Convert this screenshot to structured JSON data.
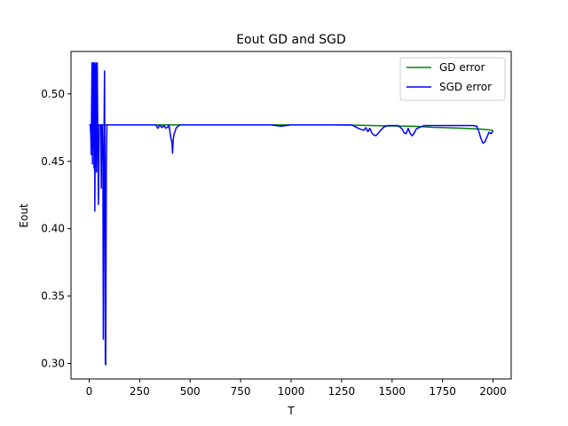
{
  "chart_data": {
    "type": "line",
    "title": "Eout GD and SGD",
    "xlabel": "T",
    "ylabel": "Eout",
    "xlim": [
      -90,
      2090
    ],
    "ylim": [
      0.2885,
      0.5315
    ],
    "xticks": [
      0,
      250,
      500,
      750,
      1000,
      1250,
      1500,
      1750,
      2000
    ],
    "xtick_labels": [
      "0",
      "250",
      "500",
      "750",
      "1000",
      "1250",
      "1500",
      "1750",
      "2000"
    ],
    "yticks": [
      0.3,
      0.35,
      0.4,
      0.45,
      0.5
    ],
    "ytick_labels": [
      "0.30",
      "0.35",
      "0.40",
      "0.45",
      "0.50"
    ],
    "grid": false,
    "legend_position": "top-right",
    "series": [
      {
        "name": "GD error",
        "color": "#008000",
        "points": [
          [
            0,
            0.477
          ],
          [
            100,
            0.477
          ],
          [
            200,
            0.477
          ],
          [
            300,
            0.477
          ],
          [
            400,
            0.477
          ],
          [
            500,
            0.477
          ],
          [
            600,
            0.477
          ],
          [
            700,
            0.477
          ],
          [
            800,
            0.477
          ],
          [
            900,
            0.477
          ],
          [
            1000,
            0.477
          ],
          [
            1100,
            0.477
          ],
          [
            1200,
            0.477
          ],
          [
            1300,
            0.4768
          ],
          [
            1400,
            0.4765
          ],
          [
            1500,
            0.4762
          ],
          [
            1600,
            0.476
          ],
          [
            1650,
            0.4757
          ],
          [
            1700,
            0.4752
          ],
          [
            1750,
            0.475
          ],
          [
            1800,
            0.4748
          ],
          [
            1850,
            0.4745
          ],
          [
            1900,
            0.4742
          ],
          [
            1950,
            0.4738
          ],
          [
            1980,
            0.4733
          ],
          [
            2000,
            0.473
          ]
        ]
      },
      {
        "name": "SGD error",
        "color": "#0000ff",
        "points": [
          [
            0,
            0.477
          ],
          [
            5,
            0.477
          ],
          [
            8,
            0.47
          ],
          [
            10,
            0.455
          ],
          [
            12,
            0.49
          ],
          [
            14,
            0.523
          ],
          [
            16,
            0.448
          ],
          [
            18,
            0.523
          ],
          [
            20,
            0.46
          ],
          [
            22,
            0.523
          ],
          [
            24,
            0.445
          ],
          [
            26,
            0.523
          ],
          [
            28,
            0.413
          ],
          [
            30,
            0.478
          ],
          [
            33,
            0.523
          ],
          [
            36,
            0.442
          ],
          [
            40,
            0.523
          ],
          [
            43,
            0.46
          ],
          [
            46,
            0.418
          ],
          [
            50,
            0.477
          ],
          [
            55,
            0.477
          ],
          [
            58,
            0.477
          ],
          [
            60,
            0.43
          ],
          [
            62,
            0.472
          ],
          [
            65,
            0.477
          ],
          [
            68,
            0.45
          ],
          [
            70,
            0.318
          ],
          [
            72,
            0.4
          ],
          [
            74,
            0.477
          ],
          [
            76,
            0.517
          ],
          [
            78,
            0.44
          ],
          [
            80,
            0.3
          ],
          [
            82,
            0.299
          ],
          [
            85,
            0.45
          ],
          [
            88,
            0.477
          ],
          [
            100,
            0.477
          ],
          [
            150,
            0.477
          ],
          [
            200,
            0.477
          ],
          [
            250,
            0.477
          ],
          [
            300,
            0.477
          ],
          [
            330,
            0.477
          ],
          [
            340,
            0.4745
          ],
          [
            350,
            0.477
          ],
          [
            360,
            0.475
          ],
          [
            370,
            0.4765
          ],
          [
            380,
            0.4745
          ],
          [
            390,
            0.4755
          ],
          [
            395,
            0.477
          ],
          [
            400,
            0.472
          ],
          [
            405,
            0.467
          ],
          [
            410,
            0.464
          ],
          [
            413,
            0.456
          ],
          [
            416,
            0.466
          ],
          [
            420,
            0.47
          ],
          [
            425,
            0.472
          ],
          [
            430,
            0.4745
          ],
          [
            440,
            0.476
          ],
          [
            450,
            0.477
          ],
          [
            500,
            0.477
          ],
          [
            600,
            0.477
          ],
          [
            700,
            0.477
          ],
          [
            800,
            0.477
          ],
          [
            900,
            0.477
          ],
          [
            950,
            0.476
          ],
          [
            1000,
            0.477
          ],
          [
            1100,
            0.477
          ],
          [
            1200,
            0.477
          ],
          [
            1250,
            0.477
          ],
          [
            1300,
            0.477
          ],
          [
            1320,
            0.4755
          ],
          [
            1340,
            0.474
          ],
          [
            1360,
            0.473
          ],
          [
            1370,
            0.475
          ],
          [
            1380,
            0.472
          ],
          [
            1390,
            0.4745
          ],
          [
            1400,
            0.471
          ],
          [
            1410,
            0.4695
          ],
          [
            1420,
            0.469
          ],
          [
            1430,
            0.4705
          ],
          [
            1440,
            0.4725
          ],
          [
            1450,
            0.474
          ],
          [
            1460,
            0.4755
          ],
          [
            1480,
            0.4765
          ],
          [
            1500,
            0.4765
          ],
          [
            1530,
            0.4765
          ],
          [
            1550,
            0.474
          ],
          [
            1560,
            0.471
          ],
          [
            1570,
            0.4705
          ],
          [
            1580,
            0.4745
          ],
          [
            1590,
            0.4705
          ],
          [
            1600,
            0.469
          ],
          [
            1610,
            0.471
          ],
          [
            1620,
            0.474
          ],
          [
            1640,
            0.4755
          ],
          [
            1660,
            0.4765
          ],
          [
            1700,
            0.4765
          ],
          [
            1800,
            0.4765
          ],
          [
            1900,
            0.4765
          ],
          [
            1920,
            0.476
          ],
          [
            1930,
            0.472
          ],
          [
            1940,
            0.467
          ],
          [
            1950,
            0.4635
          ],
          [
            1960,
            0.4645
          ],
          [
            1970,
            0.468
          ],
          [
            1980,
            0.4715
          ],
          [
            1990,
            0.4705
          ],
          [
            2000,
            0.4725
          ]
        ]
      }
    ]
  }
}
